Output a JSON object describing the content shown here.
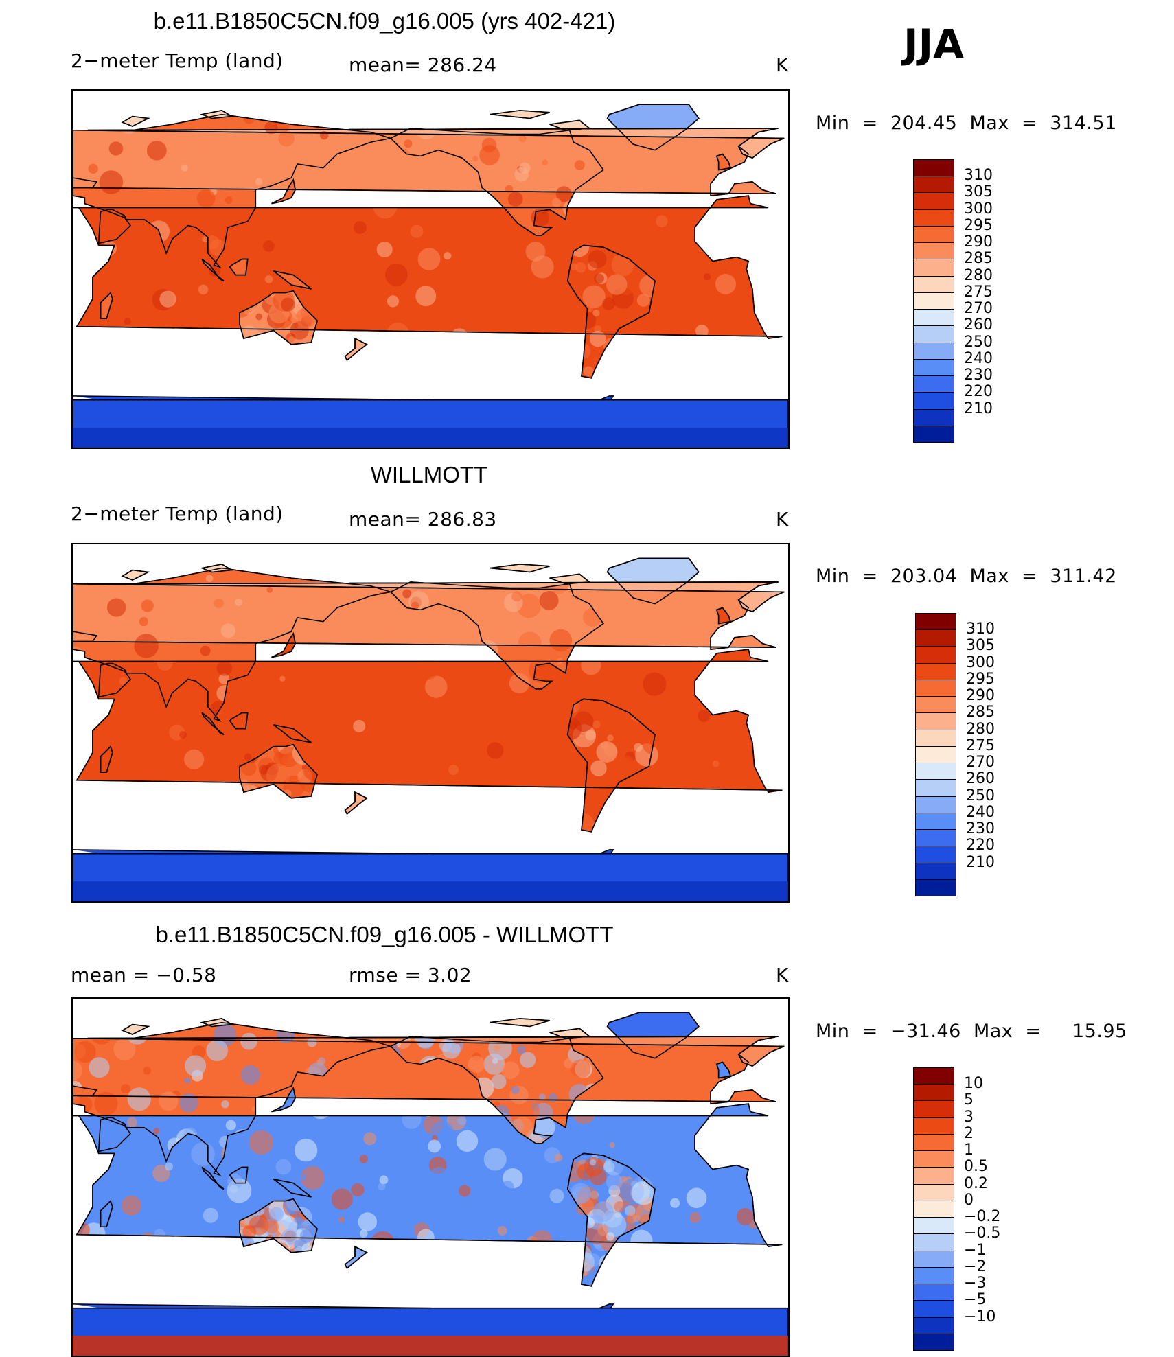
{
  "season": "JJA",
  "units": "K",
  "panels": [
    {
      "title": "b.e11.B1850C5CN.f09_g16.005 (yrs 402-421)",
      "left_label": "2−meter Temp (land)",
      "stat_text": "mean=  286.24",
      "units": "K",
      "minmax": "Min  =  204.45  Max  =  314.51",
      "field": "model",
      "antarctica_variant": "model",
      "levels": [
        "310",
        "305",
        "300",
        "295",
        "290",
        "285",
        "280",
        "275",
        "270",
        "260",
        "250",
        "240",
        "230",
        "220",
        "210"
      ],
      "colors": [
        "#800000",
        "#b31a00",
        "#d62e08",
        "#ec4a14",
        "#f66a34",
        "#fa8c5c",
        "#fcb08c",
        "#fcd7bc",
        "#fdebd9",
        "#d9e9fa",
        "#b5cff7",
        "#86acf7",
        "#5a8ef7",
        "#3c6cf0",
        "#1e4fe0",
        "#0d33c0",
        "#001e99"
      ]
    },
    {
      "title": "WILLMOTT",
      "left_label": "2−meter Temp (land)",
      "stat_text": "mean=  286.83",
      "units": "K",
      "minmax": "Min  =  203.04  Max  =  311.42",
      "field": "obs",
      "antarctica_variant": "obs",
      "levels": [
        "310",
        "305",
        "300",
        "295",
        "290",
        "285",
        "280",
        "275",
        "270",
        "260",
        "250",
        "240",
        "230",
        "220",
        "210"
      ],
      "colors": [
        "#800000",
        "#b31a00",
        "#d62e08",
        "#ec4a14",
        "#f66a34",
        "#fa8c5c",
        "#fcb08c",
        "#fcd7bc",
        "#fdebd9",
        "#d9e9fa",
        "#b5cff7",
        "#86acf7",
        "#5a8ef7",
        "#3c6cf0",
        "#1e4fe0",
        "#0d33c0",
        "#001e99"
      ]
    },
    {
      "title": "b.e11.B1850C5CN.f09_g16.005 - WILLMOTT",
      "left_label": "mean  =     −0.58",
      "stat_text": "rmse  =      3.02",
      "units": "K",
      "minmax": "Min  =  −31.46  Max  =     15.95",
      "field": "diff",
      "antarctica_variant": "diff",
      "levels": [
        "10",
        "5",
        "3",
        "2",
        "1",
        "0.5",
        "0.2",
        "0",
        "−0.2",
        "−0.5",
        "−1",
        "−2",
        "−3",
        "−5",
        "−10"
      ],
      "colors": [
        "#800000",
        "#b31a00",
        "#d62e08",
        "#ec4a14",
        "#f66a34",
        "#fa8c5c",
        "#fcb08c",
        "#fcd7bc",
        "#fdebd9",
        "#d9e9fa",
        "#b5cff7",
        "#86acf7",
        "#5a8ef7",
        "#3c6cf0",
        "#1e4fe0",
        "#0d33c0",
        "#001e99"
      ]
    }
  ]
}
